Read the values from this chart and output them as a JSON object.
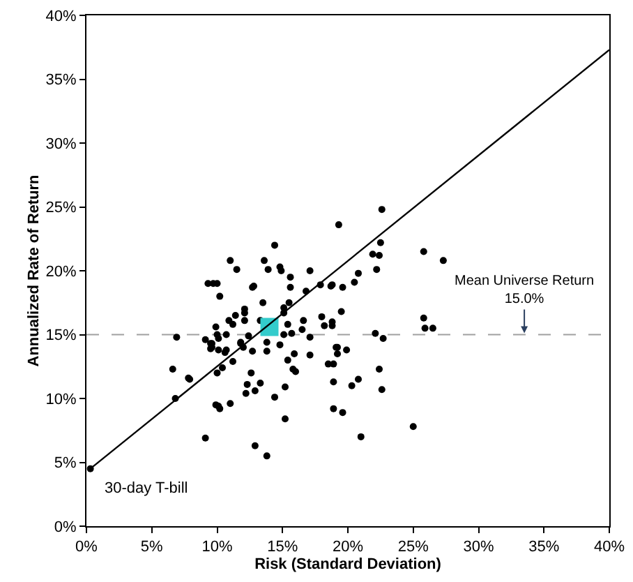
{
  "chart_data": {
    "type": "scatter",
    "xlabel": "Risk (Standard Deviation)",
    "ylabel": "Annualized Rate of Return",
    "xlim": [
      0,
      40
    ],
    "ylim": [
      0,
      40
    ],
    "xticks": [
      {
        "value": 0,
        "label": "0%"
      },
      {
        "value": 5,
        "label": "5%"
      },
      {
        "value": 10,
        "label": "10%"
      },
      {
        "value": 15,
        "label": "15%"
      },
      {
        "value": 20,
        "label": "20%"
      },
      {
        "value": 25,
        "label": "25%"
      },
      {
        "value": 30,
        "label": "30%"
      },
      {
        "value": 35,
        "label": "35%"
      },
      {
        "value": 40,
        "label": "40%"
      }
    ],
    "yticks": [
      {
        "value": 0,
        "label": "0%"
      },
      {
        "value": 5,
        "label": "5%"
      },
      {
        "value": 10,
        "label": "10%"
      },
      {
        "value": 15,
        "label": "15%"
      },
      {
        "value": 20,
        "label": "20%"
      },
      {
        "value": 25,
        "label": "25%"
      },
      {
        "value": 30,
        "label": "30%"
      },
      {
        "value": 35,
        "label": "35%"
      },
      {
        "value": 40,
        "label": "40%"
      }
    ],
    "grid": false,
    "marker": "circle",
    "series": [
      {
        "color": "#000000",
        "x": [
          0.3,
          22.6,
          19.3,
          14.4,
          22.5,
          21.9,
          22.4,
          25.8,
          27.3,
          13.6,
          13.9,
          14.8,
          14.9,
          15.6,
          17.1,
          20.8,
          22.2,
          20.5,
          12.8,
          15.6,
          17.9,
          18.7,
          18.8,
          19.6,
          16.8,
          13.5,
          15.5,
          15.1,
          15.1,
          19.5,
          13.3,
          18.0,
          18.8,
          18.2,
          18.8,
          16.6,
          15.4,
          25.8,
          26.5,
          25.9,
          12.1,
          16.5,
          15.7,
          15.1,
          17.1,
          22.1,
          22.7,
          19.2,
          19.9,
          12.7,
          13.8,
          13.8,
          14.8,
          15.4,
          15.9,
          17.1,
          19.1,
          19.2,
          15.8,
          16.0,
          18.5,
          18.9,
          12.6,
          12.3,
          13.3,
          12.2,
          12.9,
          15.2,
          14.4,
          18.9,
          20.8,
          20.3,
          22.4,
          22.6,
          18.9,
          19.6,
          15.2,
          25.0,
          21.0,
          12.9,
          13.8,
          11.0,
          11.5,
          9.3,
          9.7,
          10.0,
          10.2,
          12.7,
          12.1,
          12.1,
          10.9,
          11.4,
          11.2,
          9.9,
          6.9,
          9.1,
          9.6,
          10.0,
          10.1,
          10.7,
          11.8,
          12.4,
          9.5,
          10.1,
          10.7,
          9.5,
          9.6,
          10.6,
          11.8,
          12.0,
          11.2,
          6.6,
          7.8,
          7.9,
          10.0,
          10.4,
          6.8,
          9.9,
          10.1,
          10.2,
          11.0,
          9.1
        ],
        "values": [
          4.5,
          24.8,
          23.6,
          22.0,
          22.2,
          21.3,
          21.2,
          21.5,
          20.8,
          20.8,
          20.1,
          20.3,
          20.0,
          19.5,
          20.0,
          19.8,
          20.1,
          19.1,
          18.8,
          18.7,
          18.9,
          18.8,
          18.9,
          18.7,
          18.4,
          17.5,
          17.5,
          17.1,
          16.7,
          16.8,
          16.1,
          16.4,
          16.0,
          15.7,
          15.7,
          16.1,
          15.8,
          16.3,
          15.5,
          15.5,
          16.1,
          15.4,
          15.1,
          15.0,
          14.8,
          15.1,
          14.7,
          14.0,
          13.8,
          13.7,
          13.7,
          14.4,
          14.2,
          13.0,
          13.5,
          13.4,
          14.0,
          13.5,
          12.3,
          12.1,
          12.7,
          12.7,
          12.0,
          11.1,
          11.2,
          10.4,
          10.6,
          10.9,
          10.1,
          11.3,
          11.5,
          11.0,
          12.3,
          10.7,
          9.2,
          8.9,
          8.4,
          7.8,
          7.0,
          6.3,
          5.5,
          20.8,
          20.1,
          19.0,
          19.0,
          19.0,
          18.0,
          18.7,
          17.0,
          16.7,
          16.1,
          16.5,
          15.8,
          15.6,
          14.8,
          14.6,
          14.3,
          15.0,
          14.7,
          15.0,
          14.4,
          14.9,
          13.9,
          13.8,
          13.8,
          14.3,
          14.0,
          13.6,
          14.3,
          14.0,
          12.9,
          12.3,
          11.6,
          11.5,
          12.0,
          12.4,
          10.0,
          9.5,
          9.4,
          9.2,
          9.6,
          6.9
        ]
      },
      {
        "color": "#33cccc",
        "marker": "square",
        "x": [
          14.0
        ],
        "values": [
          15.6
        ]
      },
      {
        "type": "line",
        "color": "#000000",
        "line_style": "solid",
        "marker": "none",
        "x": [
          0.3,
          40
        ],
        "values": [
          4.5,
          37.3
        ]
      }
    ],
    "ref_lines": [
      {
        "axis": "y",
        "value": 15,
        "color": "#a0a0a0",
        "line_style": "dashed"
      }
    ],
    "annotations": [
      {
        "text": "30-day T-bill",
        "x": 0.3,
        "y": 4.5
      },
      {
        "text": "Mean Universe Return\n15.0%",
        "x": 33.5,
        "y": 15
      }
    ]
  }
}
